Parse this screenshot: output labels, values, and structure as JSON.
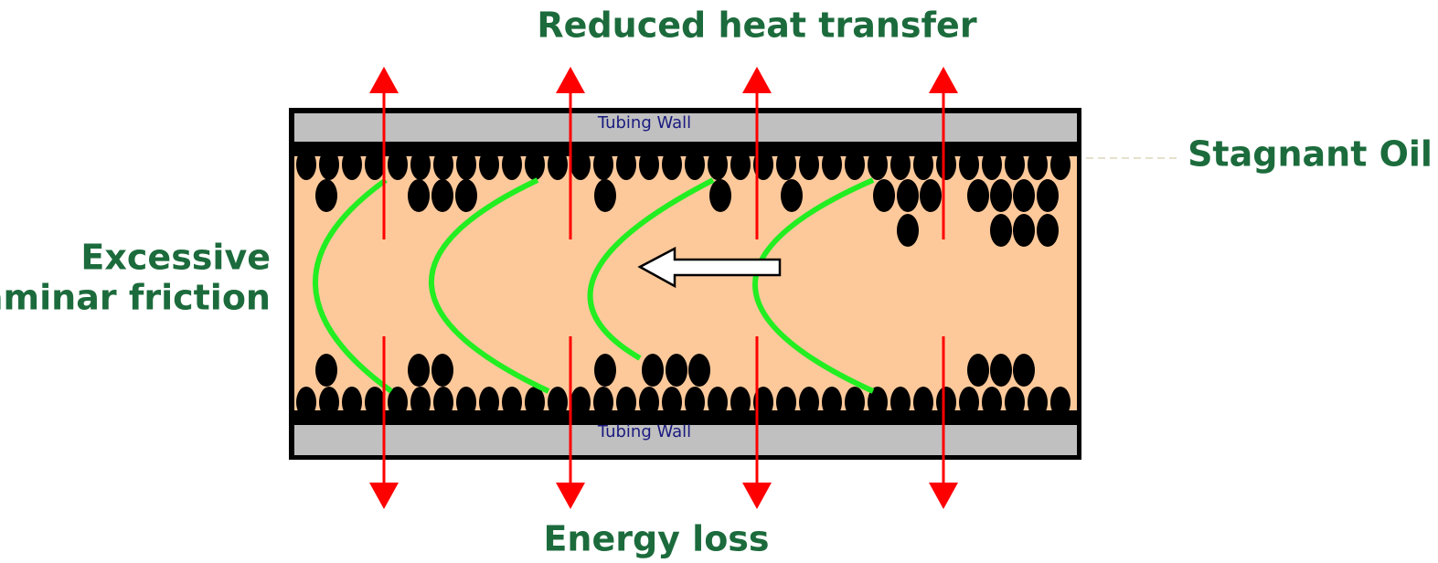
{
  "title": "Reduced heat transfer",
  "bottom_label": "Energy loss",
  "right_label": "Stagnant Oil",
  "left_label": [
    "Excessive",
    "Laminar friction"
  ],
  "tubing_wall_top": "Tubing Wall",
  "tubing_wall_bottom": "Tubing Wall"
}
